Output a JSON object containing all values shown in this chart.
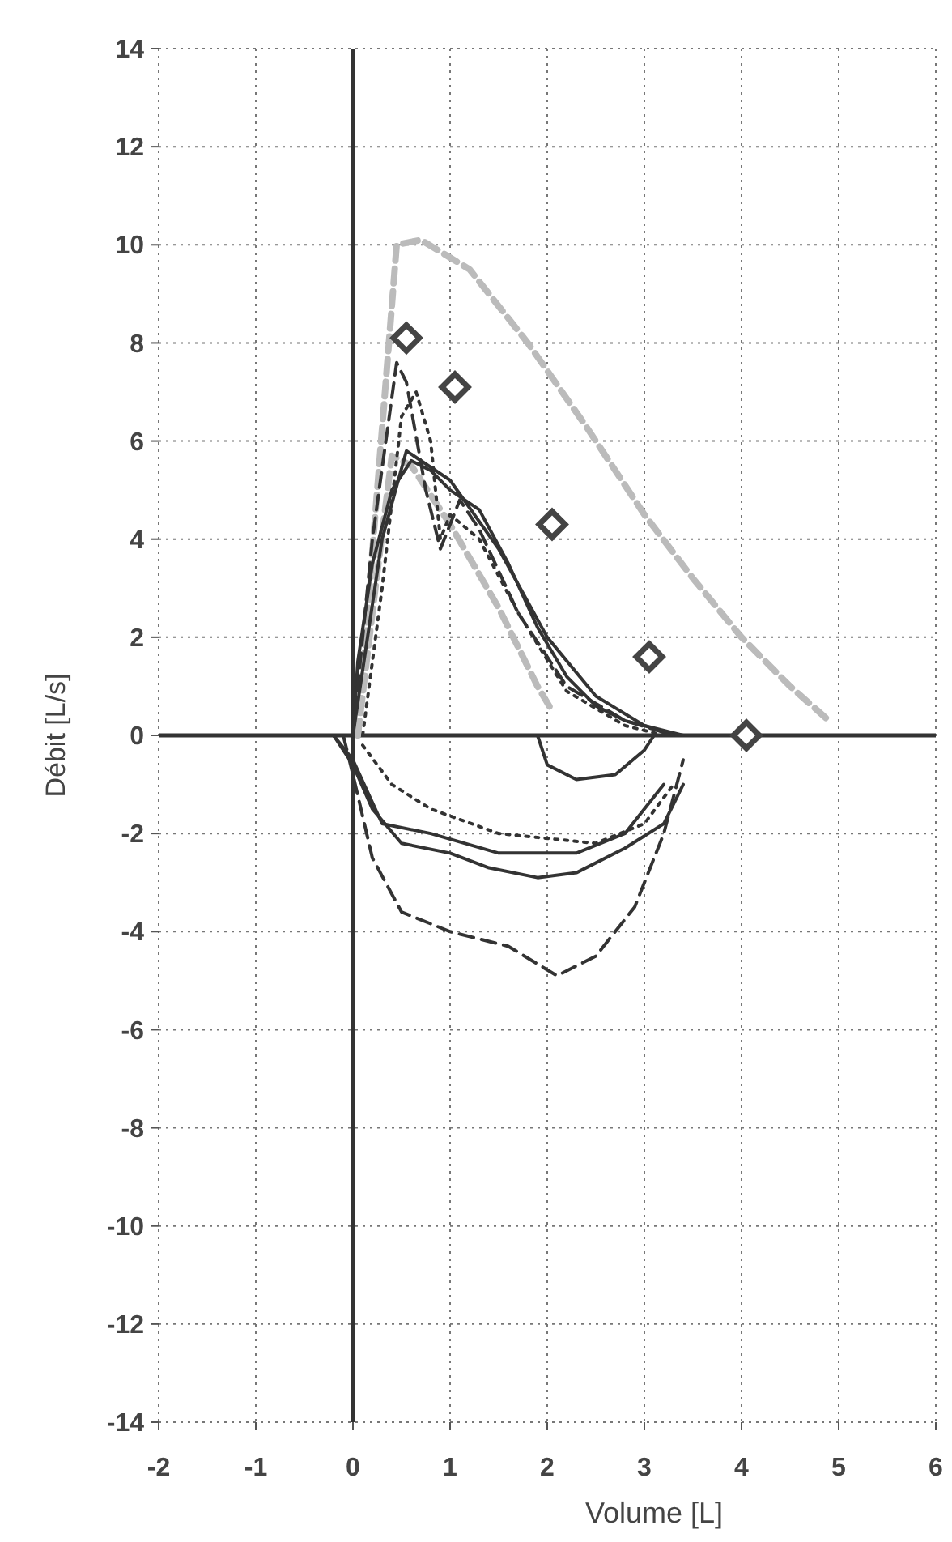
{
  "chart_data": {
    "type": "line",
    "xlabel": "Volume [L]",
    "ylabel": "Débit [L/s]",
    "xlim": [
      -2,
      6
    ],
    "ylim": [
      -14,
      14
    ],
    "xticks": [
      -2,
      -1,
      0,
      1,
      2,
      3,
      4,
      5,
      6
    ],
    "yticks": [
      -14,
      -12,
      -10,
      -8,
      -6,
      -4,
      -2,
      0,
      2,
      4,
      6,
      8,
      10,
      12,
      14
    ],
    "grid": true,
    "series": [
      {
        "color": "#bbbbbb",
        "line_style": "dashed",
        "x": [
          0.05,
          0.25,
          0.45,
          0.7,
          1.2,
          1.8,
          2.4,
          3.0,
          3.5,
          4.0,
          4.5,
          4.9
        ],
        "values": [
          0,
          5,
          10,
          10.1,
          9.5,
          8,
          6.3,
          4.5,
          3.2,
          2,
          1,
          0.3
        ]
      },
      {
        "color": "#bbbbbb",
        "line_style": "dashed",
        "x": [
          0.05,
          0.2,
          0.4,
          0.6,
          1.0,
          1.5,
          1.9,
          2.05
        ],
        "values": [
          0,
          2.5,
          5.7,
          5.5,
          4.3,
          2.6,
          1.0,
          0.5
        ]
      },
      {
        "color": "#333333",
        "line_style": "solid",
        "x": [
          0,
          0.05,
          0.2,
          0.4,
          0.6,
          0.8,
          1.0,
          1.3,
          1.6,
          1.9,
          2.2,
          2.5,
          2.8,
          3.2,
          3.4
        ],
        "values": [
          0,
          1.5,
          3.5,
          5,
          5.6,
          5.4,
          5.0,
          4.6,
          3.5,
          2.2,
          1.2,
          0.6,
          0.3,
          0.1,
          0
        ]
      },
      {
        "color": "#333333",
        "line_style": "solid",
        "x": [
          -0.2,
          0,
          0.2,
          0.5,
          1.0,
          1.4,
          1.9,
          2.3,
          2.8,
          3.2,
          3.4
        ],
        "values": [
          0,
          -0.6,
          -1.5,
          -2.2,
          -2.4,
          -2.7,
          -2.9,
          -2.8,
          -2.3,
          -1.8,
          -1
        ]
      },
      {
        "color": "#333333",
        "line_style": "solid",
        "x": [
          0,
          0.3,
          0.55,
          1.0,
          1.5,
          2.0,
          2.5,
          3.0,
          3.3
        ],
        "values": [
          0,
          4,
          5.8,
          5.2,
          3.8,
          2.0,
          0.8,
          0.2,
          0
        ]
      },
      {
        "color": "#333333",
        "line_style": "solid",
        "x": [
          -0.2,
          0,
          0.3,
          0.8,
          1.5,
          2.3,
          2.8,
          3.2
        ],
        "values": [
          0,
          -0.5,
          -1.8,
          -2.0,
          -2.4,
          -2.4,
          -2.0,
          -1
        ]
      },
      {
        "color": "#333333",
        "line_style": "solid",
        "x": [
          1.9,
          2.0,
          2.3,
          2.7,
          3.0,
          3.1
        ],
        "values": [
          0,
          -0.6,
          -0.9,
          -0.8,
          -0.3,
          0
        ]
      },
      {
        "color": "#333333",
        "line_style": "dashed",
        "x": [
          0,
          0.2,
          0.45,
          0.55,
          0.75,
          0.9,
          1.1,
          1.3,
          1.7,
          2.2,
          2.8,
          3.3
        ],
        "values": [
          0,
          4,
          7.6,
          7.2,
          5.0,
          3.8,
          4.8,
          4.2,
          2.5,
          1.0,
          0.3,
          0
        ]
      },
      {
        "color": "#333333",
        "line_style": "dashed",
        "x": [
          -0.1,
          0,
          0.2,
          0.5,
          1.0,
          1.6,
          2.1,
          2.5,
          2.9,
          3.2,
          3.4
        ],
        "values": [
          0,
          -0.8,
          -2.5,
          -3.6,
          -4.0,
          -4.3,
          -4.9,
          -4.5,
          -3.5,
          -2,
          -0.5
        ]
      },
      {
        "color": "#333333",
        "line_style": "dotted",
        "x": [
          0.1,
          0.3,
          0.5,
          0.65,
          0.8,
          0.9,
          1.0,
          1.3,
          1.7,
          2.2,
          2.8,
          3.2
        ],
        "values": [
          0,
          3,
          6.5,
          7.0,
          6.0,
          4,
          4.5,
          4.0,
          2.5,
          0.9,
          0.2,
          0
        ]
      },
      {
        "color": "#333333",
        "line_style": "dotted",
        "x": [
          0.1,
          0.4,
          0.8,
          1.5,
          2.5,
          3.0,
          3.3
        ],
        "values": [
          -0.2,
          -1.0,
          -1.5,
          -2.0,
          -2.2,
          -1.8,
          -1
        ]
      },
      {
        "type": "scatter",
        "marker": "diamond",
        "color": "#444444",
        "x": [
          0.55,
          1.05,
          2.05,
          3.05,
          4.05
        ],
        "values": [
          8.1,
          7.1,
          4.3,
          1.6,
          0
        ]
      }
    ]
  }
}
